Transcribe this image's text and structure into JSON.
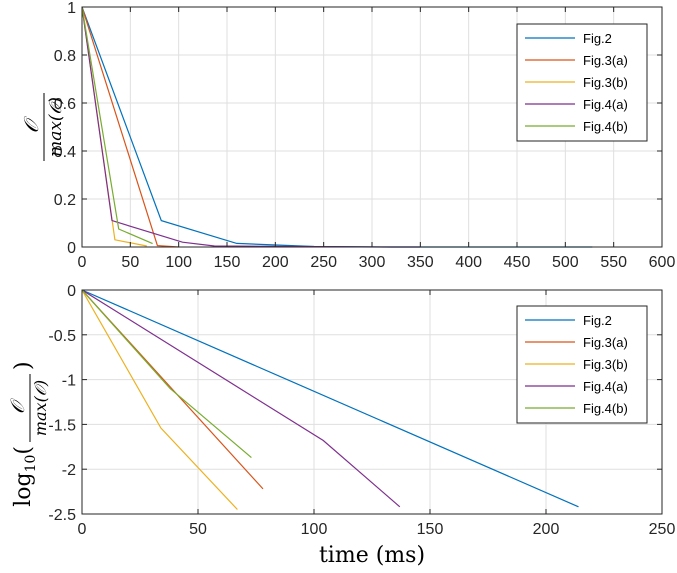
{
  "chart_data": [
    {
      "type": "line",
      "title": "",
      "xlabel": "",
      "ylabel": {
        "numerator": "𝒪",
        "prefix": "max(",
        "symbol": "𝒪",
        "suffix": ")"
      },
      "xlim": [
        0,
        600
      ],
      "ylim": [
        0,
        1
      ],
      "xticks": [
        0,
        50,
        100,
        150,
        200,
        250,
        300,
        350,
        400,
        450,
        500,
        550,
        600
      ],
      "yticks": [
        0,
        0.2,
        0.4,
        0.6,
        0.8,
        1
      ],
      "ytick_labels": [
        "0",
        "0.2",
        "0.4",
        "0.6",
        "0.8",
        "1"
      ],
      "grid": true,
      "legend": "top-right",
      "series": [
        {
          "name": "Fig.2",
          "color": "#0072BD",
          "x": [
            0,
            82,
            160,
            240,
            320,
            400,
            528
          ],
          "y": [
            1,
            0.11,
            0.015,
            0.002,
            0,
            0,
            0
          ]
        },
        {
          "name": "Fig.3(a)",
          "color": "#D95319",
          "x": [
            0,
            78,
            100
          ],
          "y": [
            1,
            0.006,
            0
          ]
        },
        {
          "name": "Fig.3(b)",
          "color": "#EDB120",
          "x": [
            0,
            34,
            67
          ],
          "y": [
            1,
            0.03,
            0.004
          ]
        },
        {
          "name": "Fig.4(a)",
          "color": "#7E2F8E",
          "x": [
            0,
            31,
            104,
            137,
            310,
            350
          ],
          "y": [
            1,
            0.11,
            0.02,
            0.004,
            0,
            0
          ]
        },
        {
          "name": "Fig.4(b)",
          "color": "#77AC30",
          "x": [
            0,
            38,
            73
          ],
          "y": [
            1,
            0.075,
            0.014
          ]
        }
      ]
    },
    {
      "type": "line",
      "title": "",
      "xlabel": "time (ms)",
      "ylabel": {
        "prefix": "log",
        "subscript": "10",
        "paren_open": "(",
        "numerator": "𝒪",
        "den_prefix": "max(",
        "symbol": "𝒪",
        "den_suffix": ")",
        "paren_close": ")"
      },
      "xlim": [
        0,
        250
      ],
      "ylim": [
        -2.5,
        0
      ],
      "xticks": [
        0,
        50,
        100,
        150,
        200,
        250
      ],
      "yticks": [
        -2.5,
        -2,
        -1.5,
        -1,
        -0.5,
        0
      ],
      "ytick_labels": [
        "-2.5",
        "-2",
        "-1.5",
        "-1",
        "-0.5",
        "0"
      ],
      "grid": true,
      "legend": "top-right",
      "series": [
        {
          "name": "Fig.2",
          "color": "#0072BD",
          "x": [
            0,
            214
          ],
          "y": [
            0,
            -2.42
          ]
        },
        {
          "name": "Fig.3(a)",
          "color": "#D95319",
          "x": [
            0,
            78
          ],
          "y": [
            0,
            -2.22
          ]
        },
        {
          "name": "Fig.3(b)",
          "color": "#EDB120",
          "x": [
            0,
            34,
            67
          ],
          "y": [
            0,
            -1.54,
            -2.45
          ]
        },
        {
          "name": "Fig.4(a)",
          "color": "#7E2F8E",
          "x": [
            0,
            104,
            137
          ],
          "y": [
            0,
            -1.68,
            -2.42
          ]
        },
        {
          "name": "Fig.4(b)",
          "color": "#77AC30",
          "x": [
            0,
            38,
            73
          ],
          "y": [
            0,
            -1.1,
            -1.87
          ]
        }
      ]
    }
  ]
}
